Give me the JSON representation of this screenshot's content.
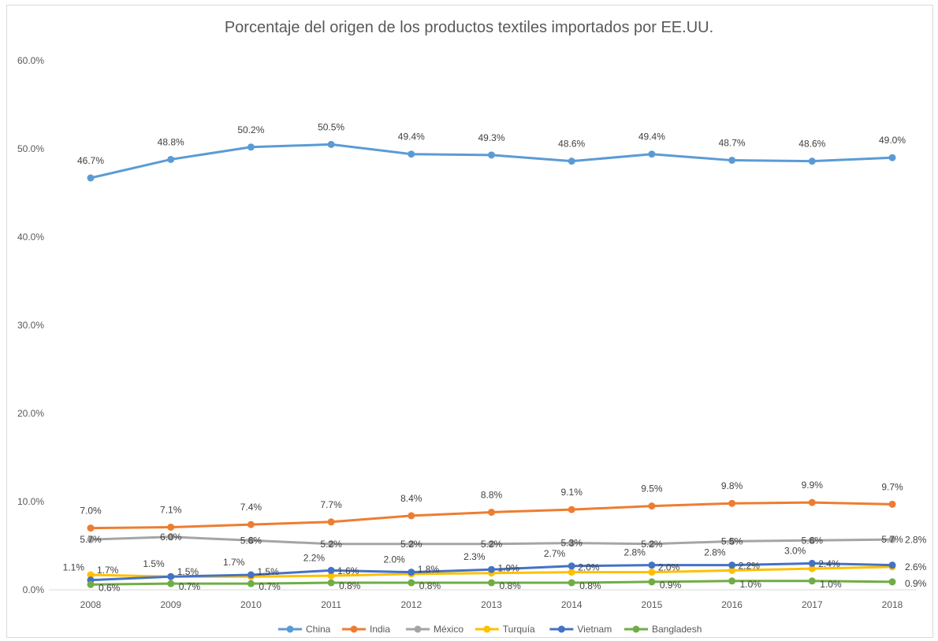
{
  "chart_data": {
    "type": "line",
    "title": "Porcentaje del origen de los productos textiles importados por EE.UU.",
    "xlabel": "",
    "ylabel": "",
    "x": [
      "2008",
      "2009",
      "2010",
      "2011",
      "2012",
      "2013",
      "2014",
      "2015",
      "2016",
      "2017",
      "2018"
    ],
    "ylim": [
      0,
      60
    ],
    "y_ticks": [
      "0.0%",
      "10.0%",
      "20.0%",
      "30.0%",
      "40.0%",
      "50.0%",
      "60.0%"
    ],
    "grid": false,
    "legend_position": "bottom",
    "series": [
      {
        "name": "China",
        "color": "#5b9bd5",
        "values": [
          46.7,
          48.8,
          50.2,
          50.5,
          49.4,
          49.3,
          48.6,
          49.4,
          48.7,
          48.6,
          49.0
        ],
        "labels": [
          "46.7%",
          "48.8%",
          "50.2%",
          "50.5%",
          "49.4%",
          "49.3%",
          "48.6%",
          "49.4%",
          "48.7%",
          "48.6%",
          "49.0%"
        ]
      },
      {
        "name": "India",
        "color": "#ed7d31",
        "values": [
          7.0,
          7.1,
          7.4,
          7.7,
          8.4,
          8.8,
          9.1,
          9.5,
          9.8,
          9.9,
          9.7
        ],
        "labels": [
          "7.0%",
          "7.1%",
          "7.4%",
          "7.7%",
          "8.4%",
          "8.8%",
          "9.1%",
          "9.5%",
          "9.8%",
          "9.9%",
          "9.7%"
        ]
      },
      {
        "name": "México",
        "color": "#a5a5a5",
        "values": [
          5.7,
          6.0,
          5.6,
          5.2,
          5.2,
          5.2,
          5.3,
          5.2,
          5.5,
          5.6,
          5.7
        ],
        "labels": [
          "5.7%",
          "6.0%",
          "5.6%",
          "5.2%",
          "5.2%",
          "5.2%",
          "5.3%",
          "5.2%",
          "5.5%",
          "5.6%",
          "5.7%"
        ]
      },
      {
        "name": "Turquía",
        "color": "#ffc000",
        "values": [
          1.7,
          1.5,
          1.5,
          1.6,
          1.8,
          1.9,
          2.0,
          2.0,
          2.2,
          2.4,
          2.6
        ],
        "labels": [
          "1.7%",
          "1.5%",
          "1.5%",
          "1.6%",
          "1.8%",
          "1.9%",
          "2.0%",
          "2.0%",
          "2.2%",
          "2.4%",
          "2.6%"
        ]
      },
      {
        "name": "Vietnam",
        "color": "#4472c4",
        "values": [
          1.1,
          1.5,
          1.7,
          2.2,
          2.0,
          2.3,
          2.7,
          2.8,
          2.8,
          3.0,
          2.8
        ],
        "labels": [
          "1.1%",
          "1.5%",
          "1.7%",
          "2.2%",
          "2.0%",
          "2.3%",
          "2.7%",
          "2.8%",
          "2.8%",
          "3.0%",
          "2.8%"
        ]
      },
      {
        "name": "Bangladesh",
        "color": "#70ad47",
        "values": [
          0.6,
          0.7,
          0.7,
          0.8,
          0.8,
          0.8,
          0.8,
          0.9,
          1.0,
          1.0,
          0.9
        ],
        "labels": [
          "0.6%",
          "0.7%",
          "0.7%",
          "0.8%",
          "0.8%",
          "0.8%",
          "0.8%",
          "0.9%",
          "1.0%",
          "1.0%",
          "0.9%"
        ]
      }
    ]
  }
}
